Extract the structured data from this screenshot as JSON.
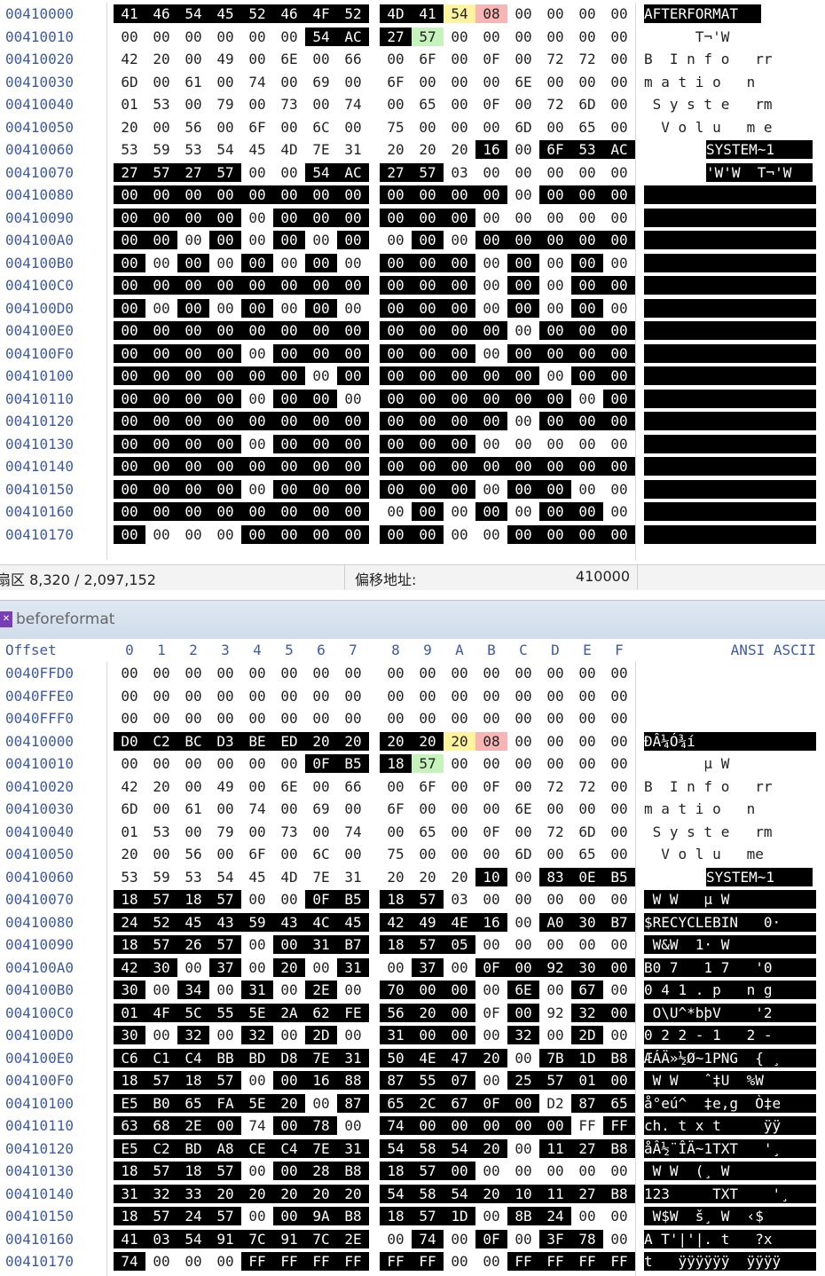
{
  "status_bar": {
    "sector": "扇区 8,320 / 2,097,152",
    "offset_label": "偏移地址:",
    "offset_value": "410000"
  },
  "window2": {
    "title": "beforeformat"
  },
  "header": {
    "offset": "Offset",
    "cols": [
      "0",
      "1",
      "2",
      "3",
      "4",
      "5",
      "6",
      "7",
      "8",
      "9",
      "A",
      "B",
      "C",
      "D",
      "E",
      "F"
    ],
    "text": "ANSI ASCII"
  },
  "top_rows": [
    {
      "o": "00410000",
      "b": [
        "41",
        "46",
        "54",
        "45",
        "52",
        "46",
        "4F",
        "52",
        "4D",
        "41",
        "54",
        "08",
        "00",
        "00",
        "00",
        "00"
      ],
      "hl": "kkkkkkkkkkyr....",
      "a": "AFTERFORMAT"
    },
    {
      "o": "00410010",
      "b": [
        "00",
        "00",
        "00",
        "00",
        "00",
        "00",
        "54",
        "AC",
        "27",
        "57",
        "00",
        "00",
        "00",
        "00",
        "00",
        "00"
      ],
      "hl": "......kkkg......",
      "a": "      T¬'W      "
    },
    {
      "o": "00410020",
      "b": [
        "42",
        "20",
        "00",
        "49",
        "00",
        "6E",
        "00",
        "66",
        "00",
        "6F",
        "00",
        "0F",
        "00",
        "72",
        "72",
        "00"
      ],
      "hl": "................",
      "a": "B  I n f o   rr "
    },
    {
      "o": "00410030",
      "b": [
        "6D",
        "00",
        "61",
        "00",
        "74",
        "00",
        "69",
        "00",
        "6F",
        "00",
        "00",
        "00",
        "6E",
        "00",
        "00",
        "00"
      ],
      "hl": "................",
      "a": "m a t i o   n   "
    },
    {
      "o": "00410040",
      "b": [
        "01",
        "53",
        "00",
        "79",
        "00",
        "73",
        "00",
        "74",
        "00",
        "65",
        "00",
        "0F",
        "00",
        "72",
        "6D",
        "00"
      ],
      "hl": "................",
      "a": " S y s t e   rm "
    },
    {
      "o": "00410050",
      "b": [
        "20",
        "00",
        "56",
        "00",
        "6F",
        "00",
        "6C",
        "00",
        "75",
        "00",
        "00",
        "00",
        "6D",
        "00",
        "65",
        "00"
      ],
      "hl": "................",
      "a": "  V o l u   m e "
    },
    {
      "o": "00410060",
      "b": [
        "53",
        "59",
        "53",
        "54",
        "45",
        "4D",
        "7E",
        "31",
        "20",
        "20",
        "20",
        "16",
        "00",
        "6F",
        "53",
        "AC"
      ],
      "hl": "...........k.kkk",
      "a": "SYSTEM~1      oS¬"
    },
    {
      "o": "00410070",
      "b": [
        "27",
        "57",
        "27",
        "57",
        "00",
        "00",
        "54",
        "AC",
        "27",
        "57",
        "03",
        "00",
        "00",
        "00",
        "00",
        "00"
      ],
      "hl": "kkkk..kkkk......",
      "a": "'W'W  T¬'W      "
    },
    {
      "o": "00410080",
      "b": [
        "00",
        "00",
        "00",
        "00",
        "00",
        "00",
        "00",
        "00",
        "00",
        "00",
        "00",
        "00",
        "00",
        "00",
        "00",
        "00"
      ],
      "hl": "kkkkkkkkkkkk.kkk",
      "a": ""
    },
    {
      "o": "00410090",
      "b": [
        "00",
        "00",
        "00",
        "00",
        "00",
        "00",
        "00",
        "00",
        "00",
        "00",
        "00",
        "00",
        "00",
        "00",
        "00",
        "00"
      ],
      "hl": "kkkk.kkkkkk.....",
      "a": ""
    },
    {
      "o": "004100A0",
      "b": [
        "00",
        "00",
        "00",
        "00",
        "00",
        "00",
        "00",
        "00",
        "00",
        "00",
        "00",
        "00",
        "00",
        "00",
        "00",
        "00"
      ],
      "hl": "kk.k.k.k.k.kkkkk",
      "a": ""
    },
    {
      "o": "004100B0",
      "b": [
        "00",
        "00",
        "00",
        "00",
        "00",
        "00",
        "00",
        "00",
        "00",
        "00",
        "00",
        "00",
        "00",
        "00",
        "00",
        "00"
      ],
      "hl": "k.k.k.k.kkk.k.k.",
      "a": ""
    },
    {
      "o": "004100C0",
      "b": [
        "00",
        "00",
        "00",
        "00",
        "00",
        "00",
        "00",
        "00",
        "00",
        "00",
        "00",
        "00",
        "00",
        "00",
        "00",
        "00"
      ],
      "hl": "kkkkkkkkkkk.k.kk",
      "a": ""
    },
    {
      "o": "004100D0",
      "b": [
        "00",
        "00",
        "00",
        "00",
        "00",
        "00",
        "00",
        "00",
        "00",
        "00",
        "00",
        "00",
        "00",
        "00",
        "00",
        "00"
      ],
      "hl": "k.k.k.k.kkk.k.k.",
      "a": ""
    },
    {
      "o": "004100E0",
      "b": [
        "00",
        "00",
        "00",
        "00",
        "00",
        "00",
        "00",
        "00",
        "00",
        "00",
        "00",
        "00",
        "00",
        "00",
        "00",
        "00"
      ],
      "hl": "kkkkkkkkkkkk.kkk",
      "a": ""
    },
    {
      "o": "004100F0",
      "b": [
        "00",
        "00",
        "00",
        "00",
        "00",
        "00",
        "00",
        "00",
        "00",
        "00",
        "00",
        "00",
        "00",
        "00",
        "00",
        "00"
      ],
      "hl": "kkkk.kkkkkk.kkkk",
      "a": ""
    },
    {
      "o": "00410100",
      "b": [
        "00",
        "00",
        "00",
        "00",
        "00",
        "00",
        "00",
        "00",
        "00",
        "00",
        "00",
        "00",
        "00",
        "00",
        "00",
        "00"
      ],
      "hl": "kkkkkk.kkkkkk.kk",
      "a": ""
    },
    {
      "o": "00410110",
      "b": [
        "00",
        "00",
        "00",
        "00",
        "00",
        "00",
        "00",
        "00",
        "00",
        "00",
        "00",
        "00",
        "00",
        "00",
        "00",
        "00"
      ],
      "hl": "kkkk.kk.kkkkkk.k",
      "a": ""
    },
    {
      "o": "00410120",
      "b": [
        "00",
        "00",
        "00",
        "00",
        "00",
        "00",
        "00",
        "00",
        "00",
        "00",
        "00",
        "00",
        "00",
        "00",
        "00",
        "00"
      ],
      "hl": "kkkkkkkkkkkk.kkk",
      "a": ""
    },
    {
      "o": "00410130",
      "b": [
        "00",
        "00",
        "00",
        "00",
        "00",
        "00",
        "00",
        "00",
        "00",
        "00",
        "00",
        "00",
        "00",
        "00",
        "00",
        "00"
      ],
      "hl": "kkkk.kkkkkk.....",
      "a": ""
    },
    {
      "o": "00410140",
      "b": [
        "00",
        "00",
        "00",
        "00",
        "00",
        "00",
        "00",
        "00",
        "00",
        "00",
        "00",
        "00",
        "00",
        "00",
        "00",
        "00"
      ],
      "hl": "kkkkkkkkkkkkkkkk",
      "a": ""
    },
    {
      "o": "00410150",
      "b": [
        "00",
        "00",
        "00",
        "00",
        "00",
        "00",
        "00",
        "00",
        "00",
        "00",
        "00",
        "00",
        "00",
        "00",
        "00",
        "00"
      ],
      "hl": "kkkk.kkkkkk.kk..",
      "a": ""
    },
    {
      "o": "00410160",
      "b": [
        "00",
        "00",
        "00",
        "00",
        "00",
        "00",
        "00",
        "00",
        "00",
        "00",
        "00",
        "00",
        "00",
        "00",
        "00",
        "00"
      ],
      "hl": "kkkkkkkk.k.k.kk.",
      "a": ""
    },
    {
      "o": "00410170",
      "b": [
        "00",
        "00",
        "00",
        "00",
        "00",
        "00",
        "00",
        "00",
        "00",
        "00",
        "00",
        "00",
        "00",
        "00",
        "00",
        "00"
      ],
      "hl": "k...kkkkkk..kkkk",
      "a": ""
    }
  ],
  "bottom_rows": [
    {
      "o": "0040FFD0",
      "b": [
        "00",
        "00",
        "00",
        "00",
        "00",
        "00",
        "00",
        "00",
        "00",
        "00",
        "00",
        "00",
        "00",
        "00",
        "00",
        "00"
      ],
      "hl": "................",
      "a": ""
    },
    {
      "o": "0040FFE0",
      "b": [
        "00",
        "00",
        "00",
        "00",
        "00",
        "00",
        "00",
        "00",
        "00",
        "00",
        "00",
        "00",
        "00",
        "00",
        "00",
        "00"
      ],
      "hl": "................",
      "a": ""
    },
    {
      "o": "0040FFF0",
      "b": [
        "00",
        "00",
        "00",
        "00",
        "00",
        "00",
        "00",
        "00",
        "00",
        "00",
        "00",
        "00",
        "00",
        "00",
        "00",
        "00"
      ],
      "hl": "................",
      "a": ""
    },
    {
      "o": "00410000",
      "b": [
        "D0",
        "C2",
        "BC",
        "D3",
        "BE",
        "ED",
        "20",
        "20",
        "20",
        "20",
        "20",
        "08",
        "00",
        "00",
        "00",
        "00"
      ],
      "hl": "kkkkkkkkkkyr....",
      "a": "ÐÂ¼Ó¾í"
    },
    {
      "o": "00410010",
      "b": [
        "00",
        "00",
        "00",
        "00",
        "00",
        "00",
        "0F",
        "B5",
        "18",
        "57",
        "00",
        "00",
        "00",
        "00",
        "00",
        "00"
      ],
      "hl": "......kkkg......",
      "a": "       µ W      "
    },
    {
      "o": "00410020",
      "b": [
        "42",
        "20",
        "00",
        "49",
        "00",
        "6E",
        "00",
        "66",
        "00",
        "6F",
        "00",
        "0F",
        "00",
        "72",
        "72",
        "00"
      ],
      "hl": "................",
      "a": "B  I n f o   rr "
    },
    {
      "o": "00410030",
      "b": [
        "6D",
        "00",
        "61",
        "00",
        "74",
        "00",
        "69",
        "00",
        "6F",
        "00",
        "00",
        "00",
        "6E",
        "00",
        "00",
        "00"
      ],
      "hl": "................",
      "a": "m a t i o   n   "
    },
    {
      "o": "00410040",
      "b": [
        "01",
        "53",
        "00",
        "79",
        "00",
        "73",
        "00",
        "74",
        "00",
        "65",
        "00",
        "0F",
        "00",
        "72",
        "6D",
        "00"
      ],
      "hl": "................",
      "a": " S y s t e   rm "
    },
    {
      "o": "00410050",
      "b": [
        "20",
        "00",
        "56",
        "00",
        "6F",
        "00",
        "6C",
        "00",
        "75",
        "00",
        "00",
        "00",
        "6D",
        "00",
        "65",
        "00"
      ],
      "hl": "................",
      "a": "  V o l u   me "
    },
    {
      "o": "00410060",
      "b": [
        "53",
        "59",
        "53",
        "54",
        "45",
        "4D",
        "7E",
        "31",
        "20",
        "20",
        "20",
        "10",
        "00",
        "83",
        "0E",
        "B5"
      ],
      "hl": "...........k.kkk",
      "a": "SYSTEM~1      ƒ µ"
    },
    {
      "o": "00410070",
      "b": [
        "18",
        "57",
        "18",
        "57",
        "00",
        "00",
        "0F",
        "B5",
        "18",
        "57",
        "03",
        "00",
        "00",
        "00",
        "00",
        "00"
      ],
      "hl": "kkkk..kkkk......",
      "a": " W W   µ W      "
    },
    {
      "o": "00410080",
      "b": [
        "24",
        "52",
        "45",
        "43",
        "59",
        "43",
        "4C",
        "45",
        "42",
        "49",
        "4E",
        "16",
        "00",
        "A0",
        "30",
        "B7"
      ],
      "hl": "kkkkkkkkkkkk.kkk",
      "a": "$RECYCLEBIN   0·"
    },
    {
      "o": "00410090",
      "b": [
        "18",
        "57",
        "26",
        "57",
        "00",
        "00",
        "31",
        "B7",
        "18",
        "57",
        "05",
        "00",
        "00",
        "00",
        "00",
        "00"
      ],
      "hl": "kkkk.kkkkkk.....",
      "a": " W&W  1· W      "
    },
    {
      "o": "004100A0",
      "b": [
        "42",
        "30",
        "00",
        "37",
        "00",
        "20",
        "00",
        "31",
        "00",
        "37",
        "00",
        "0F",
        "00",
        "92",
        "30",
        "00"
      ],
      "hl": "kk.k.k.k.k.kkkkk",
      "a": "B0 7   1 7   '0 "
    },
    {
      "o": "004100B0",
      "b": [
        "30",
        "00",
        "34",
        "00",
        "31",
        "00",
        "2E",
        "00",
        "70",
        "00",
        "00",
        "00",
        "6E",
        "00",
        "67",
        "00"
      ],
      "hl": "k.k.k.k.kkk.k.k.",
      "a": "0 4 1 . p   n g "
    },
    {
      "o": "004100C0",
      "b": [
        "01",
        "4F",
        "5C",
        "55",
        "5E",
        "2A",
        "62",
        "FE",
        "56",
        "20",
        "00",
        "0F",
        "00",
        "92",
        "32",
        "00"
      ],
      "hl": "kkkkkkkkkkk.k.kk",
      "a": " O\\U^*bþV    '2 "
    },
    {
      "o": "004100D0",
      "b": [
        "30",
        "00",
        "32",
        "00",
        "32",
        "00",
        "2D",
        "00",
        "31",
        "00",
        "00",
        "00",
        "32",
        "00",
        "2D",
        "00"
      ],
      "hl": "k.k.k.k.kkk.k.k.",
      "a": "0 2 2 - 1   2 - "
    },
    {
      "o": "004100E0",
      "b": [
        "C6",
        "C1",
        "C4",
        "BB",
        "BD",
        "D8",
        "7E",
        "31",
        "50",
        "4E",
        "47",
        "20",
        "00",
        "7B",
        "1D",
        "B8"
      ],
      "hl": "kkkkkkkkkkkk.kkk",
      "a": "ÆÁÄ»½Ø~1PNG  { ¸"
    },
    {
      "o": "004100F0",
      "b": [
        "18",
        "57",
        "18",
        "57",
        "00",
        "00",
        "16",
        "88",
        "87",
        "55",
        "07",
        "00",
        "25",
        "57",
        "01",
        "00"
      ],
      "hl": "kkkk.kkkkkk.kkkk",
      "a": " W W   ˆ‡U  %W  "
    },
    {
      "o": "00410100",
      "b": [
        "E5",
        "B0",
        "65",
        "FA",
        "5E",
        "20",
        "00",
        "87",
        "65",
        "2C",
        "67",
        "0F",
        "00",
        "D2",
        "87",
        "65"
      ],
      "hl": "kkkkkk.kkkkkk.kk",
      "a": "å°eú^  ‡e,g  Ò‡e"
    },
    {
      "o": "00410110",
      "b": [
        "63",
        "68",
        "2E",
        "00",
        "74",
        "00",
        "78",
        "00",
        "74",
        "00",
        "00",
        "00",
        "00",
        "00",
        "FF",
        "FF"
      ],
      "hl": "kkkk.kk.kkkkkk.k",
      "a": "ch. t x t     ÿÿ"
    },
    {
      "o": "00410120",
      "b": [
        "E5",
        "C2",
        "BD",
        "A8",
        "CE",
        "C4",
        "7E",
        "31",
        "54",
        "58",
        "54",
        "20",
        "00",
        "11",
        "27",
        "B8"
      ],
      "hl": "kkkkkkkkkkkk.kkk",
      "a": "åÂ½¨ÎÄ~1TXT   '¸"
    },
    {
      "o": "00410130",
      "b": [
        "18",
        "57",
        "18",
        "57",
        "00",
        "00",
        "28",
        "B8",
        "18",
        "57",
        "00",
        "00",
        "00",
        "00",
        "00",
        "00"
      ],
      "hl": "kkkk.kkkkkk.....",
      "a": " W W  (¸ W      "
    },
    {
      "o": "00410140",
      "b": [
        "31",
        "32",
        "33",
        "20",
        "20",
        "20",
        "20",
        "20",
        "54",
        "58",
        "54",
        "20",
        "10",
        "11",
        "27",
        "B8"
      ],
      "hl": "kkkkkkkkkkkkkkkk",
      "a": "123     TXT    '¸"
    },
    {
      "o": "00410150",
      "b": [
        "18",
        "57",
        "24",
        "57",
        "00",
        "00",
        "9A",
        "B8",
        "18",
        "57",
        "1D",
        "00",
        "8B",
        "24",
        "00",
        "00"
      ],
      "hl": "kkkk.kkkkkk.kk..",
      "a": " W$W  š¸ W  ‹$  "
    },
    {
      "o": "00410160",
      "b": [
        "41",
        "03",
        "54",
        "91",
        "7C",
        "91",
        "7C",
        "2E",
        "00",
        "74",
        "00",
        "0F",
        "00",
        "3F",
        "78",
        "00"
      ],
      "hl": "kkkkkkkk.k.k.kk.",
      "a": "A T'|'|. t   ?x "
    },
    {
      "o": "00410170",
      "b": [
        "74",
        "00",
        "00",
        "00",
        "FF",
        "FF",
        "FF",
        "FF",
        "FF",
        "FF",
        "00",
        "00",
        "FF",
        "FF",
        "FF",
        "FF"
      ],
      "hl": "k...kkkkkk..kkkk",
      "a": "t   ÿÿÿÿÿÿ  ÿÿÿÿ"
    }
  ]
}
